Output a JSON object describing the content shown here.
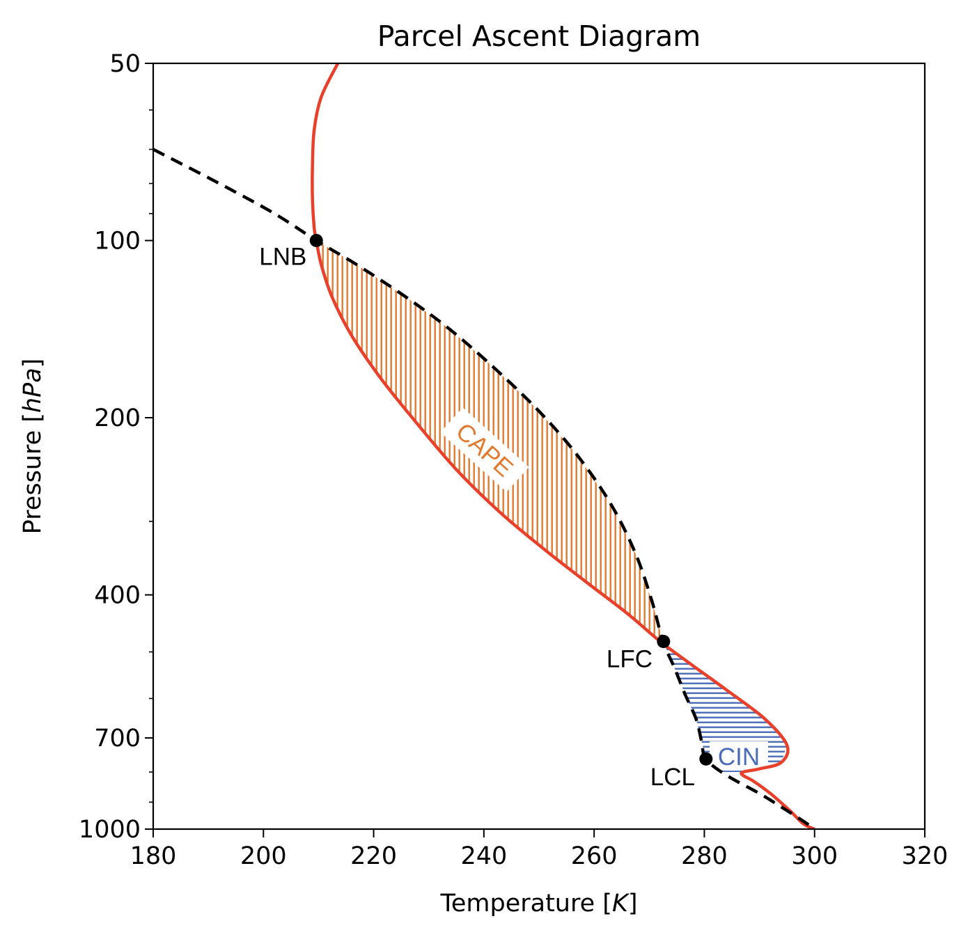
{
  "chart_data": {
    "type": "line",
    "title": "Parcel Ascent Diagram",
    "xlabel": "Temperature [K]",
    "ylabel": "Pressure [hPa]",
    "xlim": [
      180,
      320
    ],
    "ylim": [
      1000,
      50
    ],
    "y_scale": "log",
    "x_ticks": [
      180,
      200,
      220,
      240,
      260,
      280,
      300,
      320
    ],
    "y_ticks": [
      50,
      100,
      200,
      400,
      700,
      1000
    ],
    "grid": false,
    "series": [
      {
        "style": "solid",
        "color": "#e8402a",
        "points": [
          [
            213.5,
            50
          ],
          [
            210.5,
            57
          ],
          [
            209.2,
            65
          ],
          [
            208.9,
            75
          ],
          [
            208.9,
            85
          ],
          [
            209.2,
            95
          ],
          [
            209.6,
            100
          ],
          [
            210.5,
            110
          ],
          [
            212.5,
            125
          ],
          [
            216,
            145
          ],
          [
            221,
            170
          ],
          [
            227,
            200
          ],
          [
            235,
            245
          ],
          [
            243,
            290
          ],
          [
            251,
            335
          ],
          [
            258.5,
            380
          ],
          [
            266,
            430
          ],
          [
            272,
            480
          ],
          [
            277,
            520
          ],
          [
            284,
            580
          ],
          [
            291,
            650
          ],
          [
            295,
            720
          ],
          [
            294,
            770
          ],
          [
            290,
            790
          ],
          [
            287,
            800
          ],
          [
            287,
            810
          ],
          [
            289,
            830
          ],
          [
            292,
            870
          ],
          [
            295.5,
            930
          ],
          [
            298,
            980
          ],
          [
            300,
            1000
          ]
        ]
      },
      {
        "style": "dashed",
        "color": "#000000",
        "points": [
          [
            180,
            70
          ],
          [
            192,
            80
          ],
          [
            202,
            90
          ],
          [
            209.6,
            100
          ],
          [
            217,
            110
          ],
          [
            226,
            125
          ],
          [
            234,
            142
          ],
          [
            242,
            165
          ],
          [
            250,
            195
          ],
          [
            257,
            232
          ],
          [
            263,
            280
          ],
          [
            267.5,
            340
          ],
          [
            270.5,
            410
          ],
          [
            272.5,
            480
          ],
          [
            274.5,
            530
          ],
          [
            276.5,
            590
          ],
          [
            278.5,
            650
          ],
          [
            279.5,
            710
          ],
          [
            280.3,
            760
          ],
          [
            284,
            810
          ],
          [
            290,
            870
          ],
          [
            295,
            930
          ],
          [
            298,
            970
          ],
          [
            300,
            1000
          ]
        ]
      }
    ],
    "key_points": [
      {
        "label": "LNB",
        "t": 209.6,
        "p": 100
      },
      {
        "label": "LFC",
        "t": 272.6,
        "p": 480
      },
      {
        "label": "LCL",
        "t": 280.3,
        "p": 760
      }
    ],
    "regions": [
      {
        "label": "CAPE",
        "color": "#e07a30",
        "hatch": "vertical",
        "p_range": [
          100,
          480
        ]
      },
      {
        "label": "CIN",
        "color": "#4a6cb8",
        "hatch": "horizontal",
        "p_range": [
          480,
          810
        ]
      }
    ]
  }
}
